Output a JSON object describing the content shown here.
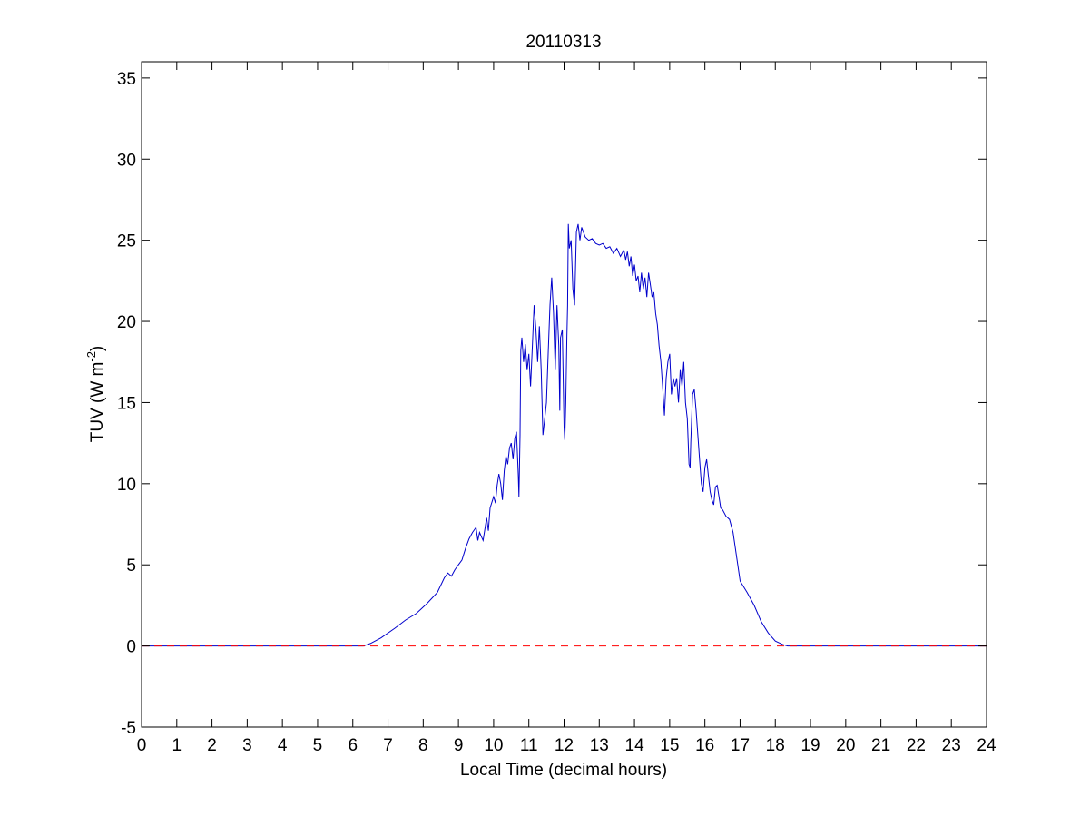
{
  "chart_data": {
    "type": "line",
    "title": "20110313",
    "xlabel": "Local Time (decimal hours)",
    "ylabel": {
      "main": "TUV (W m",
      "sup": "-2",
      "close": ")"
    },
    "xlim": [
      0,
      24
    ],
    "ylim": [
      -5,
      36
    ],
    "xticks": [
      0,
      1,
      2,
      3,
      4,
      5,
      6,
      7,
      8,
      9,
      10,
      11,
      12,
      13,
      14,
      15,
      16,
      17,
      18,
      19,
      20,
      21,
      22,
      23,
      24
    ],
    "yticks": [
      -5,
      0,
      5,
      10,
      15,
      20,
      25,
      30,
      35
    ],
    "grid": false,
    "colors": {
      "series": "#0000cc",
      "reference": "#ff0000",
      "axes": "#000000"
    },
    "series": [
      {
        "line_style": "solid",
        "color": "#0000cc",
        "points": [
          [
            0,
            0
          ],
          [
            6.3,
            0
          ],
          [
            6.5,
            0.15
          ],
          [
            6.8,
            0.5
          ],
          [
            7.2,
            1.1
          ],
          [
            7.5,
            1.6
          ],
          [
            7.8,
            2
          ],
          [
            8.1,
            2.6
          ],
          [
            8.4,
            3.3
          ],
          [
            8.6,
            4.2
          ],
          [
            8.7,
            4.5
          ],
          [
            8.8,
            4.3
          ],
          [
            8.9,
            4.7
          ],
          [
            9,
            5
          ],
          [
            9.1,
            5.3
          ],
          [
            9.2,
            6
          ],
          [
            9.3,
            6.6
          ],
          [
            9.4,
            7
          ],
          [
            9.5,
            7.3
          ],
          [
            9.55,
            6.5
          ],
          [
            9.6,
            7
          ],
          [
            9.7,
            6.5
          ],
          [
            9.8,
            7.9
          ],
          [
            9.85,
            7.1
          ],
          [
            9.9,
            8.5
          ],
          [
            10,
            9.2
          ],
          [
            10.05,
            8.8
          ],
          [
            10.1,
            9.9
          ],
          [
            10.15,
            10.6
          ],
          [
            10.2,
            10
          ],
          [
            10.25,
            9
          ],
          [
            10.3,
            10.8
          ],
          [
            10.35,
            11.7
          ],
          [
            10.4,
            11.2
          ],
          [
            10.45,
            12.2
          ],
          [
            10.5,
            12.5
          ],
          [
            10.55,
            11.5
          ],
          [
            10.6,
            12.8
          ],
          [
            10.65,
            13.2
          ],
          [
            10.7,
            10.5
          ],
          [
            10.72,
            9.2
          ],
          [
            10.75,
            13
          ],
          [
            10.77,
            18.2
          ],
          [
            10.8,
            19
          ],
          [
            10.85,
            17.5
          ],
          [
            10.9,
            18.6
          ],
          [
            10.95,
            17
          ],
          [
            11,
            18
          ],
          [
            11.05,
            16
          ],
          [
            11.1,
            18.5
          ],
          [
            11.15,
            21
          ],
          [
            11.2,
            19.5
          ],
          [
            11.25,
            17.5
          ],
          [
            11.3,
            19.7
          ],
          [
            11.35,
            17
          ],
          [
            11.4,
            13
          ],
          [
            11.45,
            14
          ],
          [
            11.5,
            15
          ],
          [
            11.55,
            18
          ],
          [
            11.6,
            21
          ],
          [
            11.65,
            22.7
          ],
          [
            11.7,
            20.5
          ],
          [
            11.75,
            17
          ],
          [
            11.8,
            21
          ],
          [
            11.85,
            18.5
          ],
          [
            11.88,
            14.5
          ],
          [
            11.9,
            19
          ],
          [
            11.95,
            19.5
          ],
          [
            12,
            13.5
          ],
          [
            12.02,
            12.7
          ],
          [
            12.05,
            15
          ],
          [
            12.08,
            19
          ],
          [
            12.1,
            21
          ],
          [
            12.12,
            26
          ],
          [
            12.15,
            24.5
          ],
          [
            12.2,
            25
          ],
          [
            12.25,
            22
          ],
          [
            12.3,
            21
          ],
          [
            12.35,
            25.5
          ],
          [
            12.4,
            26
          ],
          [
            12.45,
            25
          ],
          [
            12.5,
            25.8
          ],
          [
            12.6,
            25.2
          ],
          [
            12.7,
            25
          ],
          [
            12.8,
            25.1
          ],
          [
            12.9,
            24.8
          ],
          [
            13,
            24.7
          ],
          [
            13.1,
            24.8
          ],
          [
            13.2,
            24.5
          ],
          [
            13.3,
            24.6
          ],
          [
            13.4,
            24.2
          ],
          [
            13.5,
            24.5
          ],
          [
            13.6,
            24
          ],
          [
            13.7,
            24.4
          ],
          [
            13.75,
            23.8
          ],
          [
            13.8,
            24.3
          ],
          [
            13.85,
            23.4
          ],
          [
            13.9,
            24
          ],
          [
            13.95,
            22.8
          ],
          [
            14,
            23.5
          ],
          [
            14.05,
            22.5
          ],
          [
            14.1,
            22.8
          ],
          [
            14.15,
            21.8
          ],
          [
            14.2,
            23
          ],
          [
            14.25,
            22
          ],
          [
            14.3,
            22.7
          ],
          [
            14.35,
            21.5
          ],
          [
            14.4,
            23
          ],
          [
            14.45,
            22.3
          ],
          [
            14.5,
            21.5
          ],
          [
            14.55,
            21.8
          ],
          [
            14.6,
            20.5
          ],
          [
            14.65,
            19.8
          ],
          [
            14.7,
            18.5
          ],
          [
            14.75,
            17.5
          ],
          [
            14.8,
            16
          ],
          [
            14.85,
            14.2
          ],
          [
            14.9,
            16.5
          ],
          [
            14.95,
            17.5
          ],
          [
            15,
            18
          ],
          [
            15.05,
            15.5
          ],
          [
            15.1,
            16.5
          ],
          [
            15.15,
            16
          ],
          [
            15.2,
            16.5
          ],
          [
            15.25,
            15
          ],
          [
            15.3,
            17
          ],
          [
            15.35,
            16
          ],
          [
            15.4,
            17.5
          ],
          [
            15.45,
            15
          ],
          [
            15.5,
            14
          ],
          [
            15.55,
            11.2
          ],
          [
            15.58,
            11
          ],
          [
            15.6,
            12.5
          ],
          [
            15.65,
            15.5
          ],
          [
            15.7,
            15.8
          ],
          [
            15.75,
            14.5
          ],
          [
            15.8,
            13
          ],
          [
            15.85,
            11.5
          ],
          [
            15.9,
            10
          ],
          [
            15.95,
            9.5
          ],
          [
            16,
            11
          ],
          [
            16.05,
            11.5
          ],
          [
            16.1,
            10.5
          ],
          [
            16.15,
            9.5
          ],
          [
            16.2,
            9
          ],
          [
            16.25,
            8.7
          ],
          [
            16.3,
            9.8
          ],
          [
            16.35,
            9.9
          ],
          [
            16.4,
            9.2
          ],
          [
            16.45,
            8.5
          ],
          [
            16.5,
            8.4
          ],
          [
            16.6,
            8
          ],
          [
            16.7,
            7.8
          ],
          [
            16.8,
            7
          ],
          [
            16.9,
            5.5
          ],
          [
            17,
            4
          ],
          [
            17.2,
            3.3
          ],
          [
            17.4,
            2.5
          ],
          [
            17.6,
            1.5
          ],
          [
            17.8,
            0.8
          ],
          [
            18,
            0.3
          ],
          [
            18.2,
            0.1
          ],
          [
            18.35,
            0
          ],
          [
            24,
            0
          ]
        ]
      },
      {
        "line_style": "dashed",
        "color": "#ff0000",
        "points": [
          [
            0,
            0
          ],
          [
            24,
            0
          ]
        ]
      }
    ]
  }
}
